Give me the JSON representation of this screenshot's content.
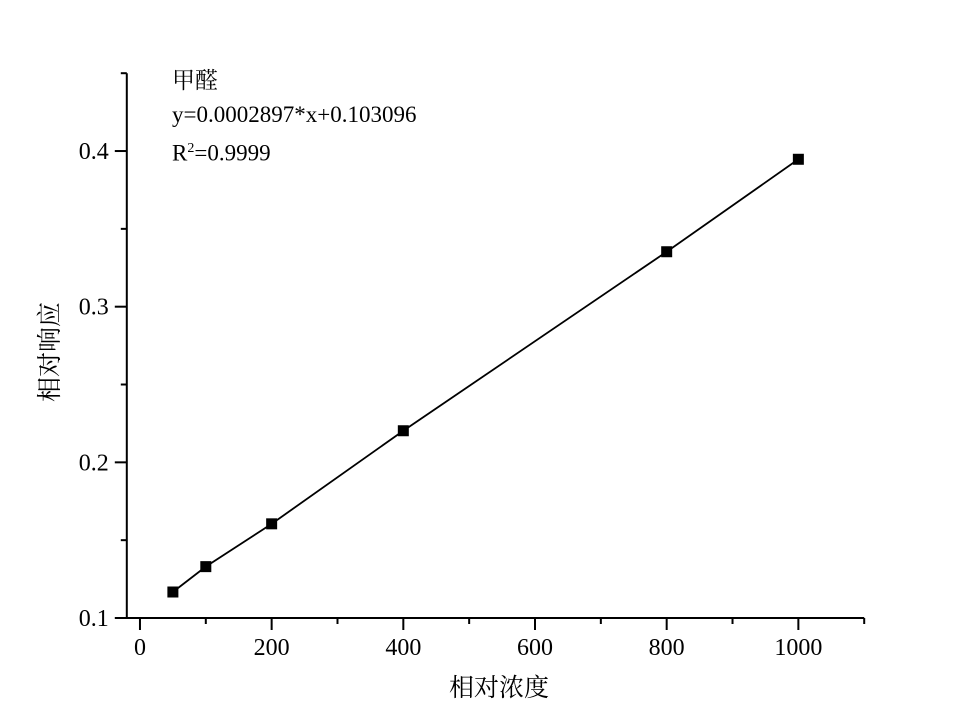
{
  "chart_data": {
    "type": "scatter",
    "series_label": "甲醛",
    "equation": "y=0.0002897*x+0.103096",
    "r2_base": "R",
    "r2_sup": "2",
    "r2_rest": "=0.9999",
    "xlabel": "相对浓度",
    "ylabel": "相对响应",
    "x": [
      50,
      100,
      200,
      400,
      800,
      1000
    ],
    "y": [
      0.1167,
      0.133,
      0.1605,
      0.2203,
      0.3353,
      0.3947
    ],
    "xlim": [
      -20,
      1100
    ],
    "ylim": [
      0.1,
      0.45
    ],
    "x_major_ticks": [
      0,
      200,
      400,
      600,
      800,
      1000
    ],
    "x_tick_labels": [
      "0",
      "200",
      "400",
      "600",
      "800",
      "1000"
    ],
    "x_minor_step": 100,
    "y_major_ticks": [
      0.1,
      0.2,
      0.3,
      0.4
    ],
    "y_tick_labels": [
      "0.1",
      "0.2",
      "0.3",
      "0.4"
    ],
    "y_minor_step": 0.05,
    "marker": "filled-square",
    "line_color": "#000000",
    "background": "#ffffff",
    "grid": false,
    "legend": false
  }
}
